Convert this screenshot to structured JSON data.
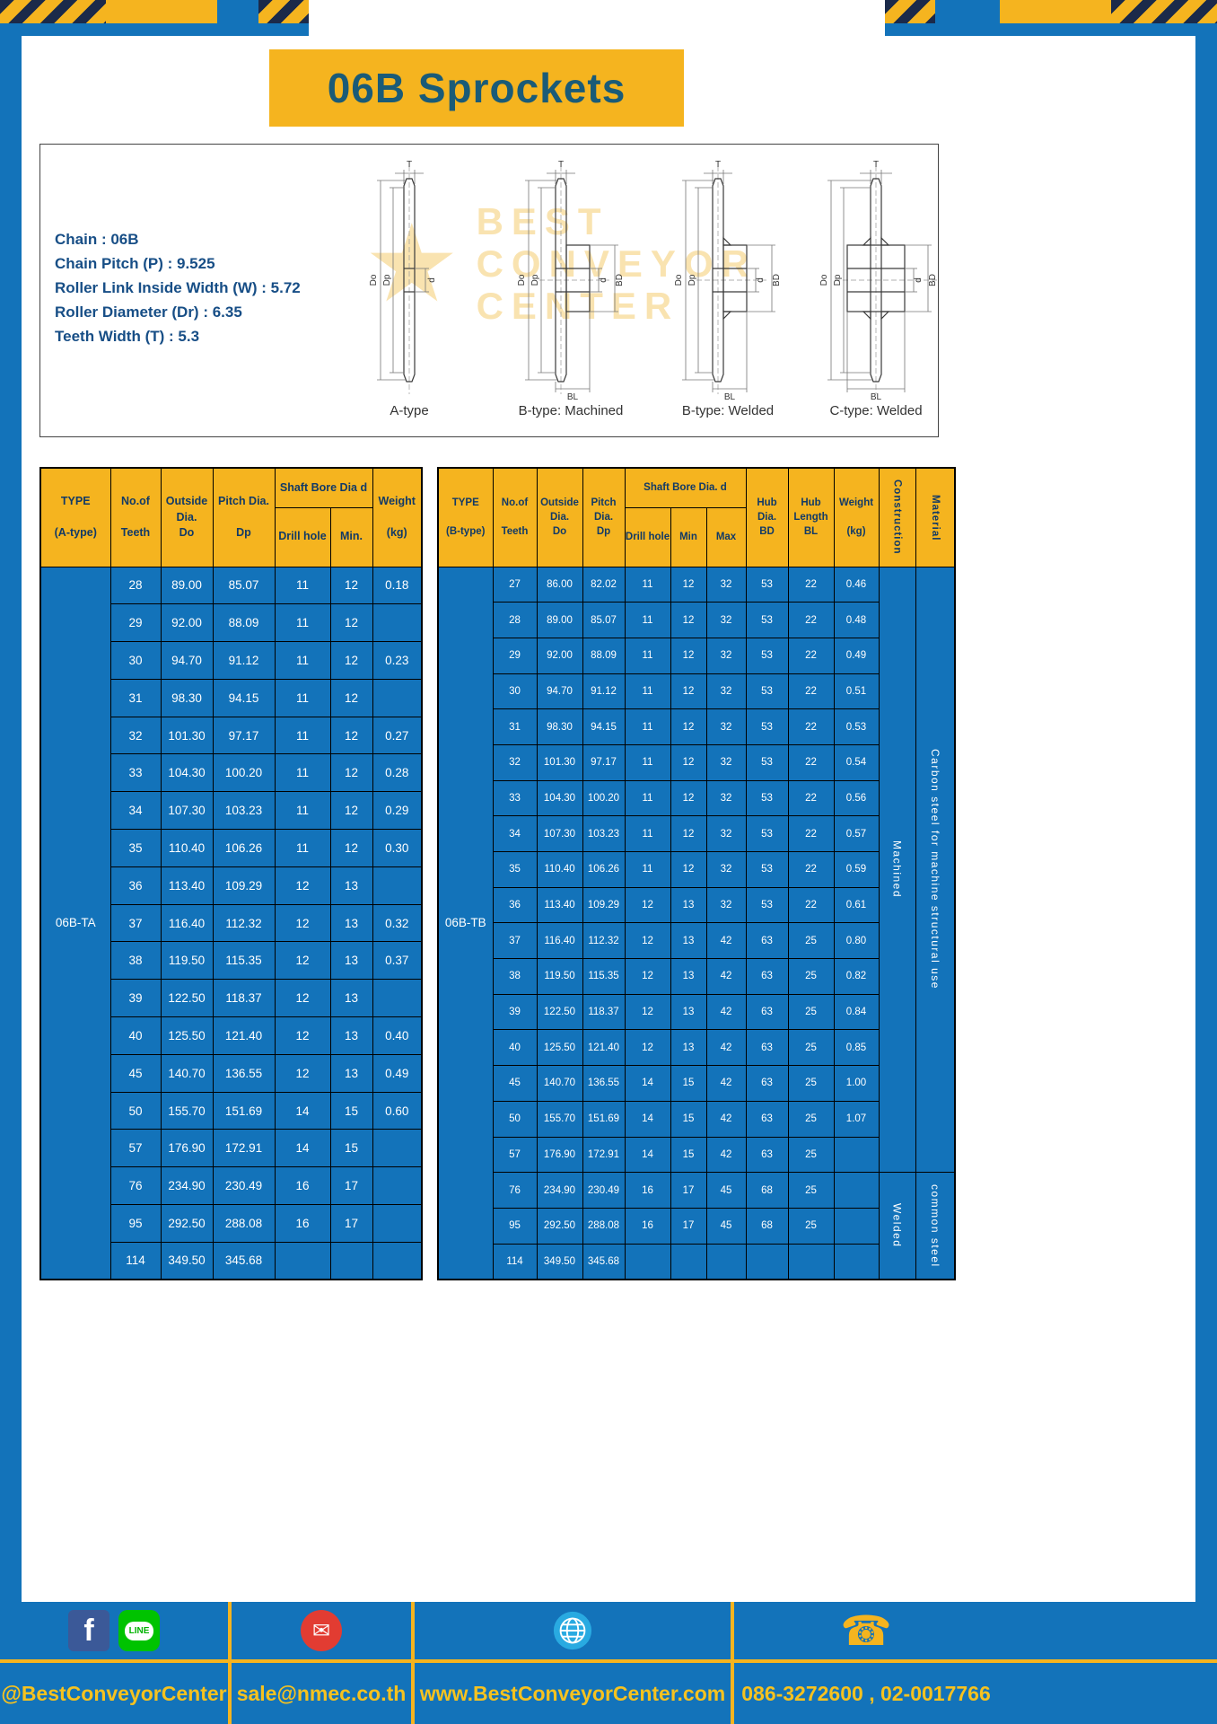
{
  "title": "06B Sprockets",
  "specs": [
    "Chain : 06B",
    "Chain Pitch (P) : 9.525",
    "Roller Link Inside Width (W) : 5.72",
    "Roller Diameter (Dr) : 6.35",
    "Teeth Width (T) : 5.3"
  ],
  "diagram": {
    "watermark": {
      "star": "★",
      "line1": "BEST",
      "line2": "CONVEYOR",
      "line3": "CENTER"
    },
    "items": [
      {
        "caption": "A-type",
        "labels": {
          "t": "T",
          "do": "Do",
          "dp": "Dp",
          "d": "d"
        }
      },
      {
        "caption": "B-type: Machined",
        "labels": {
          "t": "T",
          "do": "Do",
          "dp": "Dp",
          "d": "d",
          "bd": "BD",
          "bl": "BL"
        }
      },
      {
        "caption": "B-type: Welded",
        "labels": {
          "t": "T",
          "do": "Do",
          "dp": "Dp",
          "d": "d",
          "bd": "BD",
          "bl": "BL"
        }
      },
      {
        "caption": "C-type: Welded",
        "labels": {
          "t": "T",
          "do": "Do",
          "dp": "Dp",
          "d": "d",
          "bd": "BD",
          "bl": "BL"
        }
      }
    ]
  },
  "tables": {
    "a": {
      "header": {
        "type": "TYPE\n\n(A-type)",
        "teeth": "No.of\n\nTeeth",
        "outside": "Outside\nDia.\nDo",
        "pitch": "Pitch Dia.\n\nDp",
        "shaft": "Shaft Bore Dia d",
        "drill": "Drill hole",
        "min": "Min.",
        "weight": "Weight\n\n(kg)"
      },
      "type_label": "06B-TA",
      "rows": [
        [
          "28",
          "89.00",
          "85.07",
          "11",
          "12",
          "0.18"
        ],
        [
          "29",
          "92.00",
          "88.09",
          "11",
          "12",
          ""
        ],
        [
          "30",
          "94.70",
          "91.12",
          "11",
          "12",
          "0.23"
        ],
        [
          "31",
          "98.30",
          "94.15",
          "11",
          "12",
          ""
        ],
        [
          "32",
          "101.30",
          "97.17",
          "11",
          "12",
          "0.27"
        ],
        [
          "33",
          "104.30",
          "100.20",
          "11",
          "12",
          "0.28"
        ],
        [
          "34",
          "107.30",
          "103.23",
          "11",
          "12",
          "0.29"
        ],
        [
          "35",
          "110.40",
          "106.26",
          "11",
          "12",
          "0.30"
        ],
        [
          "36",
          "113.40",
          "109.29",
          "12",
          "13",
          ""
        ],
        [
          "37",
          "116.40",
          "112.32",
          "12",
          "13",
          "0.32"
        ],
        [
          "38",
          "119.50",
          "115.35",
          "12",
          "13",
          "0.37"
        ],
        [
          "39",
          "122.50",
          "118.37",
          "12",
          "13",
          ""
        ],
        [
          "40",
          "125.50",
          "121.40",
          "12",
          "13",
          "0.40"
        ],
        [
          "45",
          "140.70",
          "136.55",
          "12",
          "13",
          "0.49"
        ],
        [
          "50",
          "155.70",
          "151.69",
          "14",
          "15",
          "0.60"
        ],
        [
          "57",
          "176.90",
          "172.91",
          "14",
          "15",
          ""
        ],
        [
          "76",
          "234.90",
          "230.49",
          "16",
          "17",
          ""
        ],
        [
          "95",
          "292.50",
          "288.08",
          "16",
          "17",
          ""
        ],
        [
          "114",
          "349.50",
          "345.68",
          "",
          "",
          ""
        ]
      ]
    },
    "b": {
      "header": {
        "type": "TYPE\n\n(B-type)",
        "teeth": "No.of\n\nTeeth",
        "outside": "Outside\nDia.\nDo",
        "pitch": "Pitch\nDia.\nDp",
        "shaft": "Shaft Bore Dia. d",
        "drill": "Drill hole",
        "min": "Min",
        "max": "Max",
        "hub_dia": "Hub\nDia.\nBD",
        "hub_len": "Hub\nLength\nBL",
        "weight": "Weight\n\n(kg)",
        "construction": "Construction",
        "material": "Material"
      },
      "type_label": "06B-TB",
      "rows": [
        [
          "27",
          "86.00",
          "82.02",
          "11",
          "12",
          "32",
          "53",
          "22",
          "0.46"
        ],
        [
          "28",
          "89.00",
          "85.07",
          "11",
          "12",
          "32",
          "53",
          "22",
          "0.48"
        ],
        [
          "29",
          "92.00",
          "88.09",
          "11",
          "12",
          "32",
          "53",
          "22",
          "0.49"
        ],
        [
          "30",
          "94.70",
          "91.12",
          "11",
          "12",
          "32",
          "53",
          "22",
          "0.51"
        ],
        [
          "31",
          "98.30",
          "94.15",
          "11",
          "12",
          "32",
          "53",
          "22",
          "0.53"
        ],
        [
          "32",
          "101.30",
          "97.17",
          "11",
          "12",
          "32",
          "53",
          "22",
          "0.54"
        ],
        [
          "33",
          "104.30",
          "100.20",
          "11",
          "12",
          "32",
          "53",
          "22",
          "0.56"
        ],
        [
          "34",
          "107.30",
          "103.23",
          "11",
          "12",
          "32",
          "53",
          "22",
          "0.57"
        ],
        [
          "35",
          "110.40",
          "106.26",
          "11",
          "12",
          "32",
          "53",
          "22",
          "0.59"
        ],
        [
          "36",
          "113.40",
          "109.29",
          "12",
          "13",
          "32",
          "53",
          "22",
          "0.61"
        ],
        [
          "37",
          "116.40",
          "112.32",
          "12",
          "13",
          "42",
          "63",
          "25",
          "0.80"
        ],
        [
          "38",
          "119.50",
          "115.35",
          "12",
          "13",
          "42",
          "63",
          "25",
          "0.82"
        ],
        [
          "39",
          "122.50",
          "118.37",
          "12",
          "13",
          "42",
          "63",
          "25",
          "0.84"
        ],
        [
          "40",
          "125.50",
          "121.40",
          "12",
          "13",
          "42",
          "63",
          "25",
          "0.85"
        ],
        [
          "45",
          "140.70",
          "136.55",
          "14",
          "15",
          "42",
          "63",
          "25",
          "1.00"
        ],
        [
          "50",
          "155.70",
          "151.69",
          "14",
          "15",
          "42",
          "63",
          "25",
          "1.07"
        ],
        [
          "57",
          "176.90",
          "172.91",
          "14",
          "15",
          "42",
          "63",
          "25",
          ""
        ],
        [
          "76",
          "234.90",
          "230.49",
          "16",
          "17",
          "45",
          "68",
          "25",
          ""
        ],
        [
          "95",
          "292.50",
          "288.08",
          "16",
          "17",
          "45",
          "68",
          "25",
          ""
        ],
        [
          "114",
          "349.50",
          "345.68",
          "",
          "",
          "",
          "",
          "",
          ""
        ]
      ],
      "construction_groups": [
        {
          "label": "Machined",
          "span": 17
        },
        {
          "label": "Welded",
          "span": 3
        }
      ],
      "material_groups": [
        {
          "label": "Carbon steel for machine structural use",
          "span": 17
        },
        {
          "label": "common steel",
          "span": 3
        }
      ]
    }
  },
  "footer": {
    "facebook_glyph": "f",
    "line_label": "LINE",
    "email_glyph": "✉",
    "phone_glyph": "☎",
    "facebook_handle": "@BestConveyorCenter",
    "email": "sale@nmec.co.th",
    "website": "www.BestConveyorCenter.com",
    "phone": "086-3272600 , 02-0017766"
  },
  "colors": {
    "frame_blue": "#1373ba",
    "accent_yellow": "#f5b41f",
    "header_text_navy": "#123a66",
    "title_teal": "#1a5b77",
    "facebook_blue": "#3b5998",
    "line_green": "#00c300",
    "email_red": "#e23c32",
    "globe_blue": "#29aae1"
  }
}
